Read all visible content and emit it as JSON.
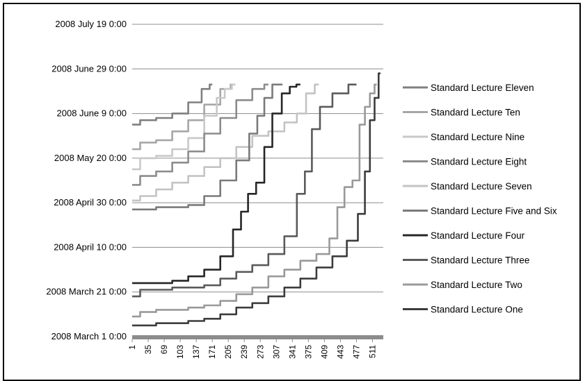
{
  "chart_data": {
    "type": "line",
    "title": "",
    "xlabel": "",
    "ylabel": "",
    "x_ticks": [
      "1",
      "35",
      "69",
      "103",
      "137",
      "171",
      "205",
      "239",
      "273",
      "307",
      "341",
      "375",
      "409",
      "443",
      "477",
      "511"
    ],
    "x_range": [
      1,
      528
    ],
    "y_ticks": [
      "2008 March 1 0:00",
      "2008 March 21 0:00",
      "2008 April 10 0:00",
      "2008 April 30 0:00",
      "2008 May 20 0:00",
      "2008 June 9 0:00",
      "2008 June 29 0:00",
      "2008 July 19 0:00"
    ],
    "y_range": [
      "2008-03-01",
      "2008-07-19"
    ],
    "grid": "horizontal",
    "legend_position": "right",
    "series": [
      {
        "name": "Standard Lecture Eleven",
        "color": "#7f7f7f",
        "points": [
          [
            1,
            "2008-06-04"
          ],
          [
            35,
            "2008-06-06"
          ],
          [
            69,
            "2008-06-07"
          ],
          [
            103,
            "2008-06-09"
          ],
          [
            137,
            "2008-06-14"
          ],
          [
            160,
            "2008-06-20"
          ],
          [
            171,
            "2008-06-22"
          ]
        ]
      },
      {
        "name": "Standard Lecture Ten",
        "color": "#a6a6a6",
        "points": [
          [
            1,
            "2008-05-24"
          ],
          [
            35,
            "2008-05-27"
          ],
          [
            69,
            "2008-05-28"
          ],
          [
            103,
            "2008-06-01"
          ],
          [
            137,
            "2008-06-06"
          ],
          [
            171,
            "2008-06-13"
          ],
          [
            205,
            "2008-06-20"
          ],
          [
            215,
            "2008-06-22"
          ]
        ]
      },
      {
        "name": "Standard Lecture Nine",
        "color": "#c8c8c8",
        "points": [
          [
            1,
            "2008-05-15"
          ],
          [
            35,
            "2008-05-20"
          ],
          [
            69,
            "2008-05-21"
          ],
          [
            103,
            "2008-05-24"
          ],
          [
            137,
            "2008-05-29"
          ],
          [
            171,
            "2008-06-08"
          ],
          [
            190,
            "2008-06-16"
          ],
          [
            205,
            "2008-06-20"
          ],
          [
            220,
            "2008-06-22"
          ]
        ]
      },
      {
        "name": "Standard Lecture Eight",
        "color": "#8c8c8c",
        "points": [
          [
            1,
            "2008-05-08"
          ],
          [
            35,
            "2008-05-12"
          ],
          [
            69,
            "2008-05-14"
          ],
          [
            103,
            "2008-05-18"
          ],
          [
            137,
            "2008-05-23"
          ],
          [
            171,
            "2008-05-31"
          ],
          [
            205,
            "2008-06-07"
          ],
          [
            239,
            "2008-06-15"
          ],
          [
            273,
            "2008-06-20"
          ],
          [
            290,
            "2008-06-22"
          ]
        ]
      },
      {
        "name": "Standard Lecture Seven",
        "color": "#c3c3c3",
        "points": [
          [
            1,
            "2008-05-01"
          ],
          [
            35,
            "2008-05-03"
          ],
          [
            69,
            "2008-05-06"
          ],
          [
            103,
            "2008-05-09"
          ],
          [
            137,
            "2008-05-12"
          ],
          [
            171,
            "2008-05-16"
          ],
          [
            205,
            "2008-05-20"
          ],
          [
            239,
            "2008-05-25"
          ],
          [
            273,
            "2008-05-30"
          ],
          [
            307,
            "2008-06-01"
          ],
          [
            341,
            "2008-06-05"
          ],
          [
            360,
            "2008-06-09"
          ],
          [
            380,
            "2008-06-18"
          ],
          [
            397,
            "2008-06-22"
          ]
        ]
      },
      {
        "name": "Standard Lecture Five and Six",
        "color": "#7a7a7a",
        "points": [
          [
            1,
            "2008-04-27"
          ],
          [
            35,
            "2008-04-27"
          ],
          [
            69,
            "2008-04-28"
          ],
          [
            103,
            "2008-04-28"
          ],
          [
            137,
            "2008-04-29"
          ],
          [
            171,
            "2008-05-03"
          ],
          [
            205,
            "2008-05-10"
          ],
          [
            239,
            "2008-05-19"
          ],
          [
            260,
            "2008-05-31"
          ],
          [
            273,
            "2008-06-08"
          ],
          [
            290,
            "2008-06-16"
          ],
          [
            307,
            "2008-06-22"
          ],
          [
            320,
            "2008-06-22"
          ]
        ]
      },
      {
        "name": "Standard Lecture Four",
        "color": "#262626",
        "points": [
          [
            1,
            "2008-03-25"
          ],
          [
            35,
            "2008-03-25"
          ],
          [
            69,
            "2008-03-25"
          ],
          [
            103,
            "2008-03-26"
          ],
          [
            137,
            "2008-03-28"
          ],
          [
            171,
            "2008-03-31"
          ],
          [
            205,
            "2008-04-06"
          ],
          [
            225,
            "2008-04-18"
          ],
          [
            239,
            "2008-04-26"
          ],
          [
            255,
            "2008-05-04"
          ],
          [
            273,
            "2008-05-09"
          ],
          [
            290,
            "2008-05-25"
          ],
          [
            307,
            "2008-06-09"
          ],
          [
            330,
            "2008-06-18"
          ],
          [
            341,
            "2008-06-21"
          ],
          [
            358,
            "2008-06-22"
          ]
        ]
      },
      {
        "name": "Standard Lecture Three",
        "color": "#5a5a5a",
        "points": [
          [
            1,
            "2008-03-19"
          ],
          [
            35,
            "2008-03-22"
          ],
          [
            69,
            "2008-03-22"
          ],
          [
            103,
            "2008-03-23"
          ],
          [
            137,
            "2008-03-23"
          ],
          [
            171,
            "2008-03-24"
          ],
          [
            205,
            "2008-03-27"
          ],
          [
            239,
            "2008-03-30"
          ],
          [
            273,
            "2008-04-02"
          ],
          [
            307,
            "2008-04-07"
          ],
          [
            341,
            "2008-04-15"
          ],
          [
            360,
            "2008-05-04"
          ],
          [
            375,
            "2008-05-14"
          ],
          [
            390,
            "2008-06-02"
          ],
          [
            409,
            "2008-06-12"
          ],
          [
            443,
            "2008-06-18"
          ],
          [
            477,
            "2008-06-22"
          ]
        ]
      },
      {
        "name": "Standard Lecture Two",
        "color": "#999999",
        "points": [
          [
            1,
            "2008-03-10"
          ],
          [
            35,
            "2008-03-12"
          ],
          [
            69,
            "2008-03-13"
          ],
          [
            103,
            "2008-03-13"
          ],
          [
            137,
            "2008-03-14"
          ],
          [
            171,
            "2008-03-15"
          ],
          [
            205,
            "2008-03-17"
          ],
          [
            239,
            "2008-03-20"
          ],
          [
            273,
            "2008-03-23"
          ],
          [
            307,
            "2008-03-28"
          ],
          [
            341,
            "2008-03-31"
          ],
          [
            375,
            "2008-04-04"
          ],
          [
            409,
            "2008-04-07"
          ],
          [
            430,
            "2008-04-14"
          ],
          [
            443,
            "2008-04-28"
          ],
          [
            460,
            "2008-05-07"
          ],
          [
            477,
            "2008-05-10"
          ],
          [
            490,
            "2008-06-04"
          ],
          [
            500,
            "2008-06-12"
          ],
          [
            511,
            "2008-06-18"
          ],
          [
            520,
            "2008-06-22"
          ]
        ]
      },
      {
        "name": "Standard Lecture One",
        "color": "#3c3c3c",
        "points": [
          [
            1,
            "2008-03-06"
          ],
          [
            35,
            "2008-03-06"
          ],
          [
            69,
            "2008-03-07"
          ],
          [
            103,
            "2008-03-07"
          ],
          [
            137,
            "2008-03-08"
          ],
          [
            171,
            "2008-03-09"
          ],
          [
            205,
            "2008-03-11"
          ],
          [
            239,
            "2008-03-14"
          ],
          [
            273,
            "2008-03-16"
          ],
          [
            307,
            "2008-03-19"
          ],
          [
            341,
            "2008-03-23"
          ],
          [
            375,
            "2008-03-27"
          ],
          [
            409,
            "2008-04-01"
          ],
          [
            443,
            "2008-04-06"
          ],
          [
            470,
            "2008-04-13"
          ],
          [
            490,
            "2008-04-25"
          ],
          [
            500,
            "2008-05-14"
          ],
          [
            511,
            "2008-06-06"
          ],
          [
            520,
            "2008-06-16"
          ],
          [
            528,
            "2008-06-27"
          ]
        ]
      }
    ]
  }
}
